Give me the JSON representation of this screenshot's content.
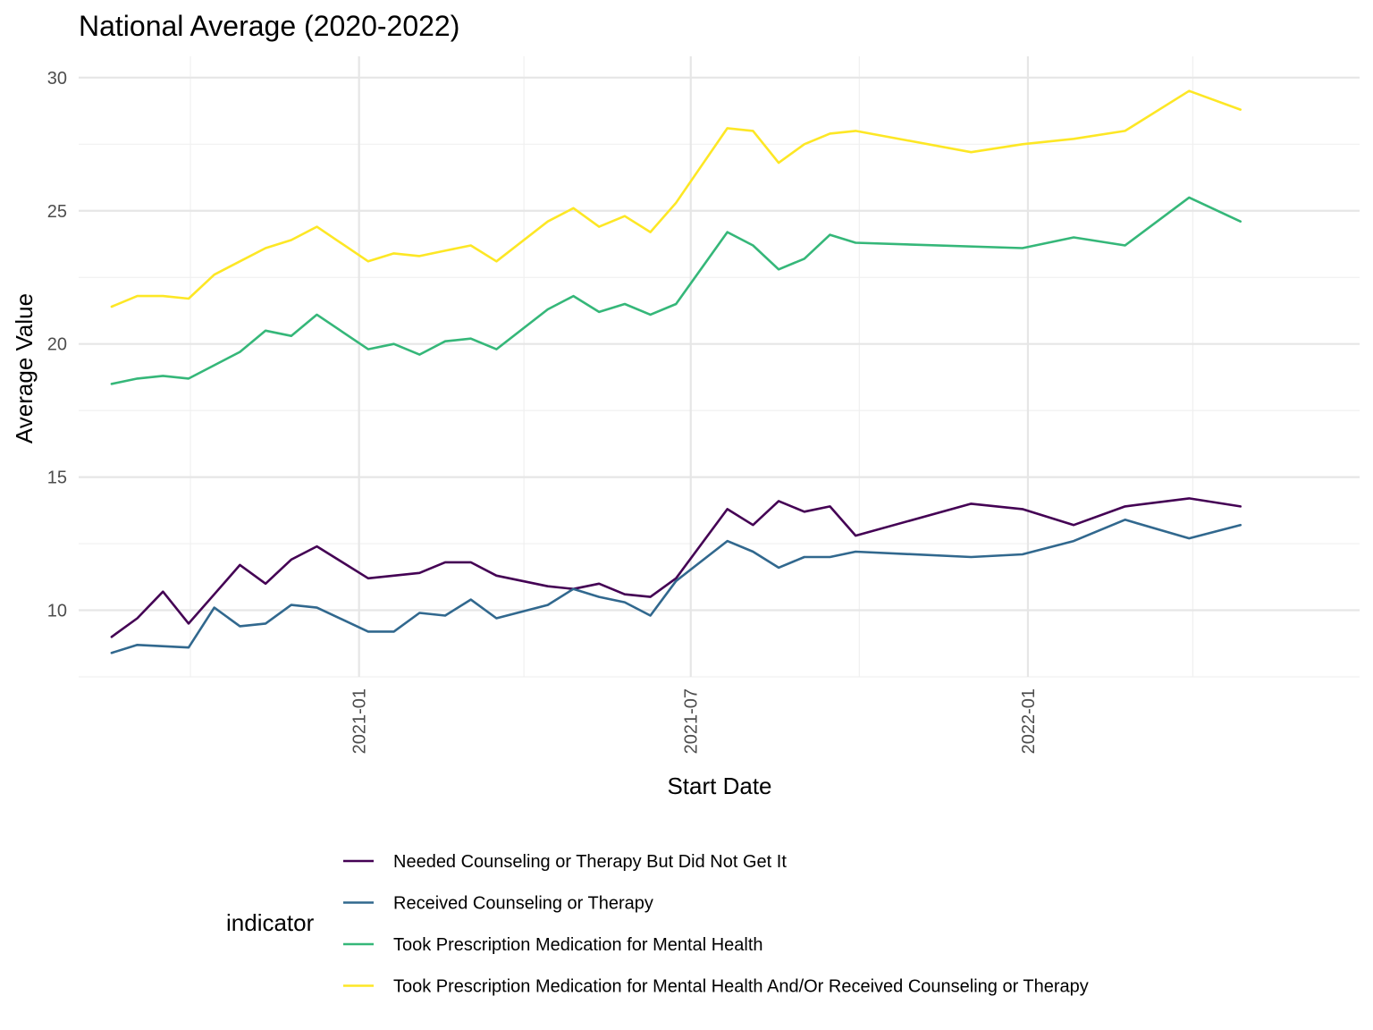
{
  "chart_data": {
    "type": "line",
    "title": "National Average (2020-2022)",
    "xlabel": "Start Date",
    "ylabel": "Average Value",
    "ylim": [
      7.5,
      30.8
    ],
    "xlim": [
      "2020-08-01",
      "2022-07-01"
    ],
    "y_ticks": [
      10,
      15,
      20,
      25,
      30
    ],
    "x_ticks": [
      {
        "date": "2021-01-01",
        "label": "2021-01"
      },
      {
        "date": "2021-07-01",
        "label": "2021-07"
      },
      {
        "date": "2022-01-01",
        "label": "2022-01"
      }
    ],
    "x_minor_grid": [
      "2020-10-01",
      "2021-04-01",
      "2021-10-01",
      "2022-04-01"
    ],
    "legend": {
      "title": "indicator",
      "position": "bottom"
    },
    "grid": true,
    "series": [
      {
        "name": "Needed Counseling or Therapy But Did Not Get It",
        "color": "#440154",
        "points": [
          [
            "2020-08-19",
            9.0
          ],
          [
            "2020-09-02",
            9.7
          ],
          [
            "2020-09-16",
            10.7
          ],
          [
            "2020-09-30",
            9.5
          ],
          [
            "2020-10-14",
            10.6
          ],
          [
            "2020-10-28",
            11.7
          ],
          [
            "2020-11-11",
            11.0
          ],
          [
            "2020-11-25",
            11.9
          ],
          [
            "2020-12-09",
            12.4
          ],
          [
            "2021-01-06",
            11.2
          ],
          [
            "2021-01-20",
            11.3
          ],
          [
            "2021-02-03",
            11.4
          ],
          [
            "2021-02-17",
            11.8
          ],
          [
            "2021-03-03",
            11.8
          ],
          [
            "2021-03-17",
            11.3
          ],
          [
            "2021-04-14",
            10.9
          ],
          [
            "2021-04-28",
            10.8
          ],
          [
            "2021-05-12",
            11.0
          ],
          [
            "2021-05-26",
            10.6
          ],
          [
            "2021-06-09",
            10.5
          ],
          [
            "2021-06-23",
            11.2
          ],
          [
            "2021-07-21",
            13.8
          ],
          [
            "2021-08-04",
            13.2
          ],
          [
            "2021-08-18",
            14.1
          ],
          [
            "2021-09-01",
            13.7
          ],
          [
            "2021-09-15",
            13.9
          ],
          [
            "2021-09-29",
            12.8
          ],
          [
            "2021-12-01",
            14.0
          ],
          [
            "2021-12-29",
            13.8
          ],
          [
            "2022-01-26",
            13.2
          ],
          [
            "2022-02-23",
            13.9
          ],
          [
            "2022-03-30",
            14.2
          ],
          [
            "2022-04-27",
            13.9
          ]
        ]
      },
      {
        "name": "Received Counseling or Therapy",
        "color": "#31688e",
        "points": [
          [
            "2020-08-19",
            8.4
          ],
          [
            "2020-09-02",
            8.7
          ],
          [
            "2020-09-30",
            8.6
          ],
          [
            "2020-10-14",
            10.1
          ],
          [
            "2020-10-28",
            9.4
          ],
          [
            "2020-11-11",
            9.5
          ],
          [
            "2020-11-25",
            10.2
          ],
          [
            "2020-12-09",
            10.1
          ],
          [
            "2021-01-06",
            9.2
          ],
          [
            "2021-01-20",
            9.2
          ],
          [
            "2021-02-03",
            9.9
          ],
          [
            "2021-02-17",
            9.8
          ],
          [
            "2021-03-03",
            10.4
          ],
          [
            "2021-03-17",
            9.7
          ],
          [
            "2021-04-14",
            10.2
          ],
          [
            "2021-04-28",
            10.8
          ],
          [
            "2021-05-12",
            10.5
          ],
          [
            "2021-05-26",
            10.3
          ],
          [
            "2021-06-09",
            9.8
          ],
          [
            "2021-06-23",
            11.1
          ],
          [
            "2021-07-21",
            12.6
          ],
          [
            "2021-08-04",
            12.2
          ],
          [
            "2021-08-18",
            11.6
          ],
          [
            "2021-09-01",
            12.0
          ],
          [
            "2021-09-15",
            12.0
          ],
          [
            "2021-09-29",
            12.2
          ],
          [
            "2021-12-01",
            12.0
          ],
          [
            "2021-12-29",
            12.1
          ],
          [
            "2022-01-26",
            12.6
          ],
          [
            "2022-02-23",
            13.4
          ],
          [
            "2022-03-30",
            12.7
          ],
          [
            "2022-04-27",
            13.2
          ]
        ]
      },
      {
        "name": "Took Prescription Medication for Mental Health",
        "color": "#35b779",
        "points": [
          [
            "2020-08-19",
            18.5
          ],
          [
            "2020-09-02",
            18.7
          ],
          [
            "2020-09-16",
            18.8
          ],
          [
            "2020-09-30",
            18.7
          ],
          [
            "2020-10-14",
            19.2
          ],
          [
            "2020-10-28",
            19.7
          ],
          [
            "2020-11-11",
            20.5
          ],
          [
            "2020-11-25",
            20.3
          ],
          [
            "2020-12-09",
            21.1
          ],
          [
            "2021-01-06",
            19.8
          ],
          [
            "2021-01-20",
            20.0
          ],
          [
            "2021-02-03",
            19.6
          ],
          [
            "2021-02-17",
            20.1
          ],
          [
            "2021-03-03",
            20.2
          ],
          [
            "2021-03-17",
            19.8
          ],
          [
            "2021-04-14",
            21.3
          ],
          [
            "2021-04-28",
            21.8
          ],
          [
            "2021-05-12",
            21.2
          ],
          [
            "2021-05-26",
            21.5
          ],
          [
            "2021-06-09",
            21.1
          ],
          [
            "2021-06-23",
            21.5
          ],
          [
            "2021-07-21",
            24.2
          ],
          [
            "2021-08-04",
            23.7
          ],
          [
            "2021-08-18",
            22.8
          ],
          [
            "2021-09-01",
            23.2
          ],
          [
            "2021-09-15",
            24.1
          ],
          [
            "2021-09-29",
            23.8
          ],
          [
            "2021-12-29",
            23.6
          ],
          [
            "2022-01-26",
            24.0
          ],
          [
            "2022-02-23",
            23.7
          ],
          [
            "2022-03-30",
            25.5
          ],
          [
            "2022-04-27",
            24.6
          ]
        ]
      },
      {
        "name": "Took Prescription Medication for Mental Health And/Or Received Counseling or Therapy",
        "color": "#fde725",
        "points": [
          [
            "2020-08-19",
            21.4
          ],
          [
            "2020-09-02",
            21.8
          ],
          [
            "2020-09-16",
            21.8
          ],
          [
            "2020-09-30",
            21.7
          ],
          [
            "2020-10-14",
            22.6
          ],
          [
            "2020-10-28",
            23.1
          ],
          [
            "2020-11-11",
            23.6
          ],
          [
            "2020-11-25",
            23.9
          ],
          [
            "2020-12-09",
            24.4
          ],
          [
            "2021-01-06",
            23.1
          ],
          [
            "2021-01-20",
            23.4
          ],
          [
            "2021-02-03",
            23.3
          ],
          [
            "2021-02-17",
            23.5
          ],
          [
            "2021-03-03",
            23.7
          ],
          [
            "2021-03-17",
            23.1
          ],
          [
            "2021-04-14",
            24.6
          ],
          [
            "2021-04-28",
            25.1
          ],
          [
            "2021-05-12",
            24.4
          ],
          [
            "2021-05-26",
            24.8
          ],
          [
            "2021-06-09",
            24.2
          ],
          [
            "2021-06-23",
            25.3
          ],
          [
            "2021-07-21",
            28.1
          ],
          [
            "2021-08-04",
            28.0
          ],
          [
            "2021-08-18",
            26.8
          ],
          [
            "2021-09-01",
            27.5
          ],
          [
            "2021-09-15",
            27.9
          ],
          [
            "2021-09-29",
            28.0
          ],
          [
            "2021-12-01",
            27.2
          ],
          [
            "2021-12-29",
            27.5
          ],
          [
            "2022-01-26",
            27.7
          ],
          [
            "2022-02-23",
            28.0
          ],
          [
            "2022-03-30",
            29.5
          ],
          [
            "2022-04-27",
            28.8
          ]
        ]
      }
    ]
  }
}
